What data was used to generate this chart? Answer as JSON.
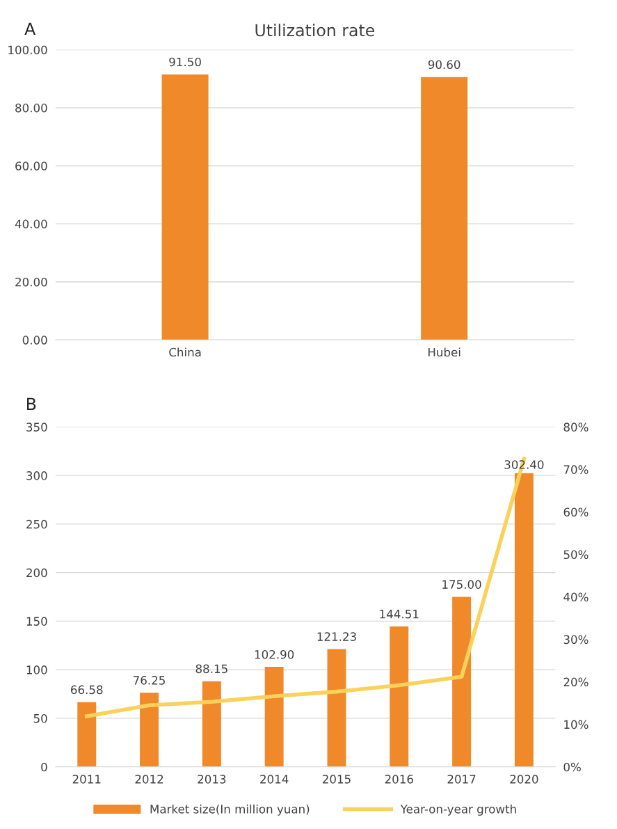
{
  "chart_data": [
    {
      "type": "bar",
      "title": "Utilization rate",
      "annotations": [
        "A"
      ],
      "categories": [
        "China",
        "Hubei"
      ],
      "series": [
        {
          "color": "#f0892a",
          "values": [
            91.5,
            90.6
          ],
          "value_labels": [
            "91.50",
            "90.60"
          ]
        }
      ],
      "data_labels": true,
      "ylim": [
        0,
        100
      ],
      "yticks": [
        {
          "value": 0,
          "label": "0.00"
        },
        {
          "value": 20,
          "label": "20.00"
        },
        {
          "value": 40,
          "label": "40.00"
        },
        {
          "value": 60,
          "label": "60.00"
        },
        {
          "value": 80,
          "label": "80.00"
        },
        {
          "value": 100,
          "label": "100.00"
        }
      ],
      "grid": "y",
      "legend": false
    },
    {
      "type": "bar",
      "annotations": [
        "B"
      ],
      "categories": [
        "2011",
        "2012",
        "2013",
        "2014",
        "2015",
        "2016",
        "2017",
        "2020"
      ],
      "series": [
        {
          "name": "Market size(In million yuan)",
          "color": "#f0892a",
          "values": [
            66.58,
            76.25,
            88.15,
            102.9,
            121.23,
            144.51,
            175.0,
            302.4
          ],
          "value_labels": [
            "66.58",
            "76.25",
            "88.15",
            "102.90",
            "121.23",
            "144.51",
            "175.00",
            "302.40"
          ]
        },
        {
          "name": "Year-on-year growth",
          "type": "line",
          "axis": "y2",
          "color": "#f9d25c",
          "values": [
            11.9,
            14.5,
            15.3,
            16.6,
            17.7,
            19.2,
            21.2,
            72.5
          ]
        }
      ],
      "ylim": [
        0,
        350
      ],
      "yticks": [
        0,
        50,
        100,
        150,
        200,
        250,
        300,
        350
      ],
      "y2lim": [
        0,
        80
      ],
      "y2ticks": [
        {
          "value": 0,
          "label": "0%"
        },
        {
          "value": 10,
          "label": "10%"
        },
        {
          "value": 20,
          "label": "20%"
        },
        {
          "value": 30,
          "label": "30%"
        },
        {
          "value": 40,
          "label": "40%"
        },
        {
          "value": 50,
          "label": "50%"
        },
        {
          "value": 60,
          "label": "60%"
        },
        {
          "value": 70,
          "label": "70%"
        },
        {
          "value": 80,
          "label": "80%"
        }
      ],
      "grid": "y",
      "legend": "bottom",
      "marker": "none",
      "line_style": "solid"
    }
  ]
}
